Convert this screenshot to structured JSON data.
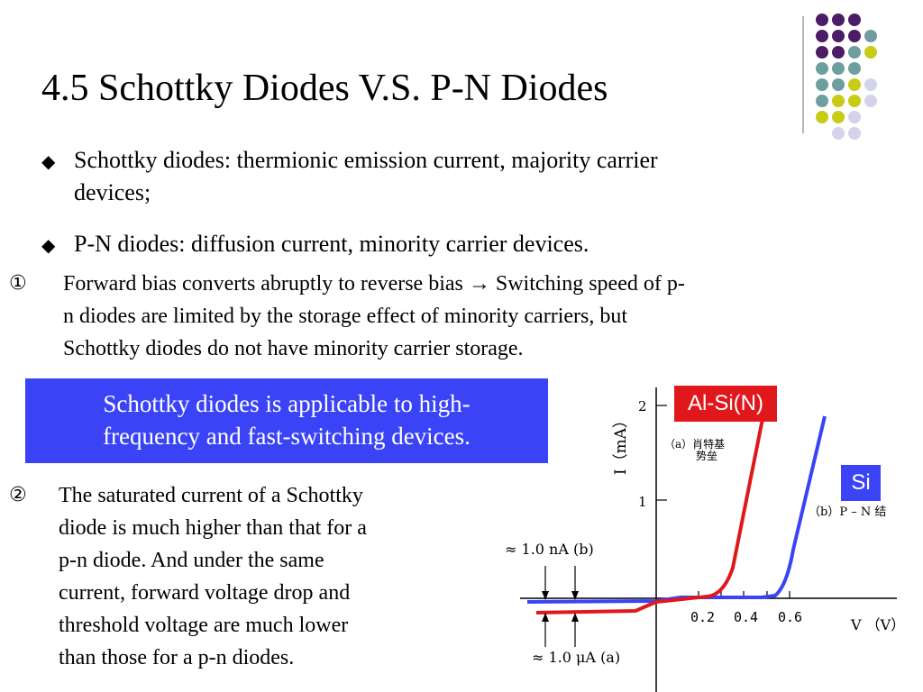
{
  "title": "4.5 Schottky Diodes V.S. P-N Diodes",
  "bullets": [
    {
      "mark": "◆",
      "lines": [
        "Schottky diodes: thermionic emission current, majority carrier",
        "devices;"
      ]
    },
    {
      "mark": "◆",
      "lines": [
        "P-N diodes: diffusion current, minority carrier devices."
      ]
    }
  ],
  "item1": {
    "num": "①",
    "lines": [
      "Forward bias converts abruptly to reverse bias → Switching speed of  p-",
      "n diodes are limited by the storage effect of  minority carriers, but",
      "Schottky diodes do not have minority carrier storage."
    ]
  },
  "highlight": {
    "lines": [
      "Schottky diodes is applicable to high-",
      "frequency and fast-switching devices."
    ]
  },
  "item2": {
    "num": "②",
    "lines": [
      "The saturated current of  a Schottky",
      "diode is much higher than that for a",
      "p-n diode. And under the same",
      "current, forward voltage drop and",
      "threshold voltage are much lower",
      "than those for a p-n diodes."
    ]
  },
  "graph": {
    "y_axis_label": "I（mA）",
    "x_axis_label": "V  （V）",
    "y_ticks": [
      "2",
      "1"
    ],
    "x_ticks": [
      "0.2",
      "0.4",
      "0.6"
    ],
    "label_schottky": "Al-Si(N)",
    "label_pn": "Si",
    "curve_a_label": "（a）肖特基",
    "curve_a_label2": "势垒",
    "curve_b_label": "（b）P – N 结",
    "sat_b": "≈ 1.0 nA (b)",
    "sat_a": "≈ 1.0 μA (a)",
    "colors": {
      "schottky": "#e0181c",
      "pn": "#3a43f5"
    }
  },
  "colors": {
    "purple": "#4b1d67",
    "teal": "#6f9ea0",
    "yellow": "#c8cc14",
    "lavender": "#d4d3ec"
  }
}
